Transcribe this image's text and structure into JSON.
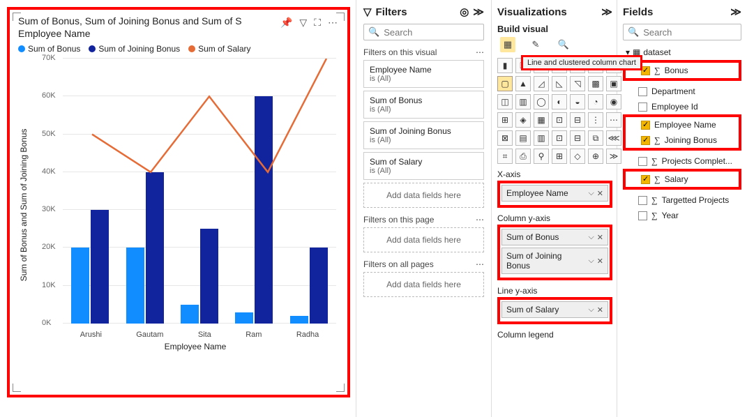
{
  "chart": {
    "title_line1": "Sum of Bonus, Sum of Joining Bonus and Sum of S",
    "title_line2": "Employee Name",
    "legend": [
      {
        "label": "Sum of Bonus",
        "color": "#118dff"
      },
      {
        "label": "Sum of Joining Bonus",
        "color": "#12239e"
      },
      {
        "label": "Sum of Salary",
        "color": "#e66c37"
      }
    ],
    "x_title": "Employee Name",
    "y_title": "Sum of Bonus and Sum of Joining Bonus",
    "categories": [
      "Arushi",
      "Gautam",
      "Sita",
      "Ram",
      "Radha"
    ],
    "bonus": [
      20000,
      20000,
      5000,
      3000,
      2000
    ],
    "joining": [
      30000,
      40000,
      25000,
      60000,
      20000
    ],
    "salary": [
      50000,
      40000,
      60000,
      40000,
      70000
    ],
    "ymax": 70000,
    "ytick_step": 10000,
    "grid_color": "#e6e6e6",
    "colors": {
      "bonus": "#118dff",
      "joining": "#12239e",
      "line": "#e66c37"
    },
    "icons": {
      "pin": "📌",
      "filter": "▽",
      "focus": "⛶",
      "more": "⋯"
    }
  },
  "filters": {
    "title": "Filters",
    "search_placeholder": "Search",
    "sec_visual": "Filters on this visual",
    "cards": [
      {
        "name": "Employee Name",
        "sub": "is (All)"
      },
      {
        "name": "Sum of Bonus",
        "sub": "is (All)"
      },
      {
        "name": "Sum of Joining Bonus",
        "sub": "is (All)"
      },
      {
        "name": "Sum of Salary",
        "sub": "is (All)"
      }
    ],
    "drop": "Add data fields here",
    "sec_page": "Filters on this page",
    "sec_all": "Filters on all pages"
  },
  "viz": {
    "title": "Visualizations",
    "sub": "Build visual",
    "tooltip": "Line and clustered column chart",
    "icons": [
      "▮",
      "⏍",
      "▤",
      "▭",
      "⏛",
      "◧",
      "⏚",
      "▢",
      "▲",
      "◿",
      "◺",
      "◹",
      "▩",
      "▣",
      "◫",
      "▥",
      "◯",
      "◐",
      "◒",
      "◔",
      "◉",
      "⊞",
      "◈",
      "▦",
      "⊡",
      "⊟",
      "⋮",
      "⋯",
      "⊠",
      "▤",
      "▥",
      "⊡",
      "⊟",
      "⧉",
      "⋘",
      "⌗",
      "⎙",
      "⚲",
      "⊞",
      "◇",
      "⊕",
      "≫"
    ],
    "wells": {
      "x": {
        "label": "X-axis",
        "items": [
          "Employee Name"
        ]
      },
      "coly": {
        "label": "Column y-axis",
        "items": [
          "Sum of Bonus",
          "Sum of Joining Bonus"
        ]
      },
      "liney": {
        "label": "Line y-axis",
        "items": [
          "Sum of Salary"
        ]
      },
      "legend": {
        "label": "Column legend"
      }
    }
  },
  "fields": {
    "title": "Fields",
    "search_placeholder": "Search",
    "table": "dataset",
    "rows": [
      {
        "name": "Bonus",
        "sigma": true,
        "checked": true,
        "hl": true
      },
      {
        "name": "Department",
        "sigma": false,
        "checked": false,
        "hl": false
      },
      {
        "name": "Employee Id",
        "sigma": false,
        "checked": false,
        "hl": false
      },
      {
        "name": "Employee Name",
        "sigma": false,
        "checked": true,
        "hl": true
      },
      {
        "name": "Joining Bonus",
        "sigma": true,
        "checked": true,
        "hl": true
      },
      {
        "name": "Projects Complet...",
        "sigma": true,
        "checked": false,
        "hl": false
      },
      {
        "name": "Salary",
        "sigma": true,
        "checked": true,
        "hl": true
      },
      {
        "name": "Targetted Projects",
        "sigma": true,
        "checked": false,
        "hl": false
      },
      {
        "name": "Year",
        "sigma": true,
        "checked": false,
        "hl": false
      }
    ]
  }
}
